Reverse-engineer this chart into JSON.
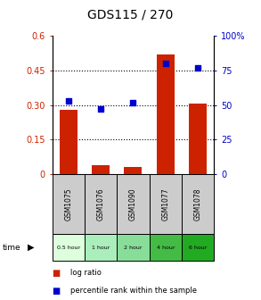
{
  "title": "GDS115 / 270",
  "samples": [
    "GSM1075",
    "GSM1076",
    "GSM1090",
    "GSM1077",
    "GSM1078"
  ],
  "time_labels": [
    "0.5 hour",
    "1 hour",
    "2 hour",
    "4 hour",
    "6 hour"
  ],
  "log_ratio": [
    0.28,
    0.04,
    0.03,
    0.52,
    0.305
  ],
  "percentile": [
    53,
    47,
    52,
    80,
    77
  ],
  "bar_color": "#cc2200",
  "dot_color": "#0000cc",
  "ylim_left": [
    0,
    0.6
  ],
  "ylim_right": [
    0,
    100
  ],
  "yticks_left": [
    0,
    0.15,
    0.3,
    0.45,
    0.6
  ],
  "yticks_right": [
    0,
    25,
    50,
    75,
    100
  ],
  "ytick_labels_left": [
    "0",
    "0.15",
    "0.30",
    "0.45",
    "0.6"
  ],
  "ytick_labels_right": [
    "0",
    "25",
    "50",
    "75",
    "100%"
  ],
  "time_colors": [
    "#ddffdd",
    "#aaeebb",
    "#88dd99",
    "#44bb44",
    "#22aa22"
  ],
  "sample_bg": "#cccccc",
  "legend_bar_label": "log ratio",
  "legend_dot_label": "percentile rank within the sample",
  "title_fontsize": 10,
  "tick_fontsize": 7,
  "label_fontsize": 7,
  "bar_width": 0.55
}
